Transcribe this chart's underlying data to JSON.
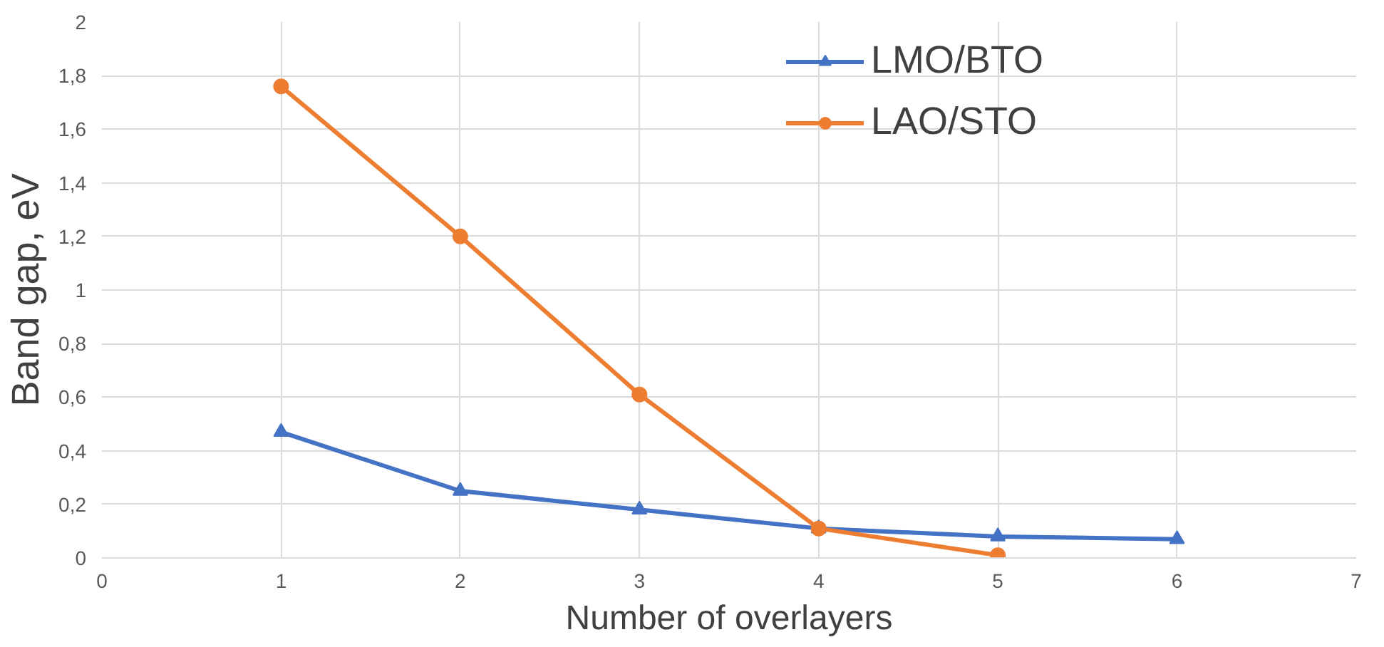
{
  "chart_data": {
    "type": "line",
    "xlabel": "Number of overlayers",
    "ylabel": "Band gap, eV",
    "x": [
      1,
      2,
      3,
      4,
      5,
      6
    ],
    "series": [
      {
        "name": "LMO/BTO",
        "color": "#4472c4",
        "marker": "triangle",
        "values": [
          0.47,
          0.25,
          0.18,
          0.11,
          0.08,
          0.07
        ]
      },
      {
        "name": "LAO/STO",
        "color": "#ed7d31",
        "marker": "circle",
        "values": [
          1.76,
          1.2,
          0.61,
          0.11,
          0.01,
          null
        ]
      }
    ],
    "xlim": [
      0,
      7
    ],
    "xticks": [
      0,
      1,
      2,
      3,
      4,
      5,
      6,
      7
    ],
    "ylim": [
      0,
      2
    ],
    "yticks": [
      0,
      {
        "value": 0.2,
        "label": "0,2"
      },
      {
        "value": 0.4,
        "label": "0,4"
      },
      {
        "value": 0.6,
        "label": "0,6"
      },
      {
        "value": 0.8,
        "label": "0,8"
      },
      1,
      {
        "value": 1.2,
        "label": "1,2"
      },
      {
        "value": 1.4,
        "label": "1,4"
      },
      {
        "value": 1.6,
        "label": "1,6"
      },
      {
        "value": 1.8,
        "label": "1,8"
      },
      2
    ],
    "grid": true,
    "legend": "top right",
    "line_style": "solid"
  }
}
